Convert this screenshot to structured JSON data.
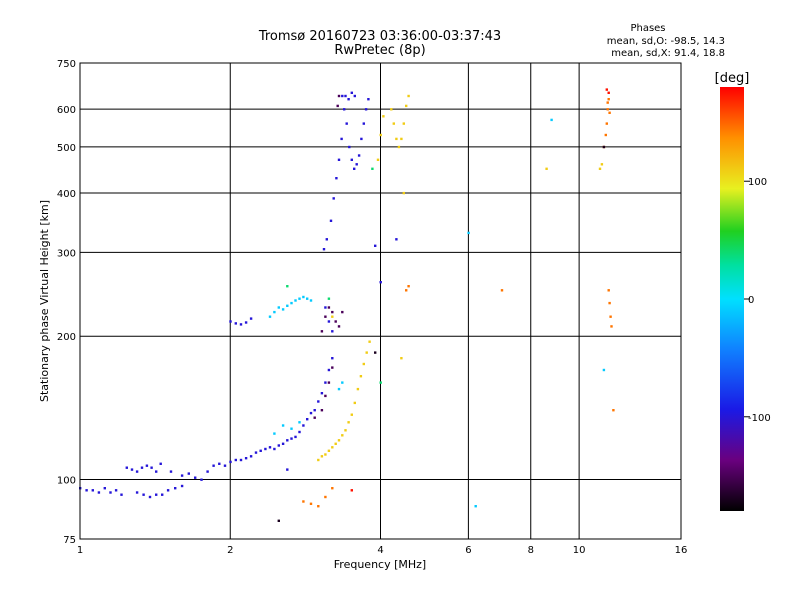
{
  "chart_data": {
    "type": "scatter",
    "title": "Tromsø 20160723 03:36:00-03:37:43",
    "subtitle": "RwPretec (8p)",
    "xlabel": "Frequency [MHz]",
    "ylabel": "Stationary phase Virtual Height [km]",
    "x_scale": "log",
    "y_scale": "log",
    "xlim": [
      1,
      16
    ],
    "ylim": [
      75,
      750
    ],
    "x_ticks": [
      1,
      2,
      4,
      6,
      8,
      10,
      16
    ],
    "y_ticks": [
      75,
      100,
      200,
      300,
      400,
      500,
      600,
      750
    ],
    "grid": true,
    "stats": {
      "header": "Phases",
      "line1": "mean, sd,O: -98.5, 14.3",
      "line2": "mean, sd,X:  91.4, 18.8"
    },
    "colorbar": {
      "label": "[deg]",
      "min": -180,
      "max": 180,
      "ticks": [
        100,
        0,
        -100
      ],
      "tick_labels": [
        "100",
        "0",
        "-100"
      ]
    },
    "series": [
      {
        "color_phase": -100,
        "points": [
          [
            1.0,
            96
          ],
          [
            1.03,
            95
          ],
          [
            1.06,
            95
          ],
          [
            1.09,
            94
          ],
          [
            1.12,
            96
          ],
          [
            1.15,
            94
          ],
          [
            1.18,
            95
          ],
          [
            1.21,
            93
          ],
          [
            1.24,
            106
          ],
          [
            1.27,
            105
          ],
          [
            1.3,
            104
          ],
          [
            1.33,
            106
          ],
          [
            1.36,
            107
          ],
          [
            1.39,
            106
          ],
          [
            1.42,
            104
          ],
          [
            1.3,
            94
          ],
          [
            1.34,
            93
          ],
          [
            1.38,
            92
          ],
          [
            1.42,
            93
          ],
          [
            1.46,
            93
          ],
          [
            1.5,
            95
          ],
          [
            1.55,
            96
          ],
          [
            1.6,
            97
          ],
          [
            1.45,
            108
          ],
          [
            1.52,
            104
          ],
          [
            1.6,
            102
          ],
          [
            1.65,
            103
          ],
          [
            1.7,
            101
          ],
          [
            1.75,
            100
          ],
          [
            1.8,
            104
          ],
          [
            1.85,
            107
          ],
          [
            1.9,
            108
          ],
          [
            1.95,
            107
          ],
          [
            2.0,
            109
          ],
          [
            2.05,
            110
          ],
          [
            2.1,
            110
          ],
          [
            2.15,
            111
          ],
          [
            2.2,
            112
          ],
          [
            2.25,
            114
          ],
          [
            2.3,
            115
          ],
          [
            2.35,
            116
          ],
          [
            2.4,
            117
          ],
          [
            2.45,
            116
          ],
          [
            2.5,
            118
          ],
          [
            2.55,
            119
          ],
          [
            2.6,
            121
          ],
          [
            2.65,
            122
          ],
          [
            2.7,
            123
          ],
          [
            2.75,
            126
          ],
          [
            2.8,
            130
          ],
          [
            2.85,
            134
          ],
          [
            2.9,
            138
          ],
          [
            2.95,
            140
          ],
          [
            3.0,
            146
          ],
          [
            3.05,
            152
          ],
          [
            3.1,
            160
          ],
          [
            3.15,
            170
          ],
          [
            3.2,
            180
          ],
          [
            2.0,
            215
          ],
          [
            2.05,
            213
          ],
          [
            2.1,
            212
          ],
          [
            2.15,
            214
          ],
          [
            2.2,
            218
          ],
          [
            3.08,
            305
          ],
          [
            3.12,
            320
          ],
          [
            3.18,
            350
          ],
          [
            3.22,
            390
          ],
          [
            3.26,
            430
          ],
          [
            3.3,
            470
          ],
          [
            3.34,
            520
          ],
          [
            3.38,
            600
          ],
          [
            3.42,
            560
          ],
          [
            3.46,
            500
          ],
          [
            3.5,
            470
          ],
          [
            3.54,
            450
          ],
          [
            3.58,
            460
          ],
          [
            3.62,
            480
          ],
          [
            3.66,
            520
          ],
          [
            3.7,
            560
          ],
          [
            3.74,
            600
          ],
          [
            3.78,
            630
          ],
          [
            3.35,
            640
          ],
          [
            3.4,
            640
          ],
          [
            3.45,
            630
          ],
          [
            3.5,
            650
          ],
          [
            3.55,
            640
          ],
          [
            3.9,
            310
          ],
          [
            4.0,
            260
          ],
          [
            4.3,
            320
          ],
          [
            3.1,
            230
          ],
          [
            3.15,
            215
          ],
          [
            3.2,
            205
          ],
          [
            2.6,
            105
          ]
        ]
      },
      {
        "color_phase": -150,
        "points": [
          [
            3.05,
            205
          ],
          [
            3.1,
            220
          ],
          [
            3.15,
            230
          ],
          [
            3.2,
            225
          ],
          [
            3.25,
            215
          ],
          [
            3.3,
            210
          ],
          [
            3.35,
            225
          ],
          [
            2.95,
            135
          ],
          [
            3.05,
            140
          ],
          [
            3.1,
            150
          ],
          [
            3.15,
            160
          ],
          [
            3.2,
            172
          ],
          [
            3.3,
            640
          ],
          [
            3.28,
            610
          ]
        ]
      },
      {
        "color_phase": -10,
        "points": [
          [
            2.4,
            220
          ],
          [
            2.45,
            225
          ],
          [
            2.5,
            230
          ],
          [
            2.55,
            228
          ],
          [
            2.6,
            232
          ],
          [
            2.65,
            235
          ],
          [
            2.7,
            238
          ],
          [
            2.75,
            240
          ],
          [
            2.8,
            242
          ],
          [
            2.85,
            240
          ],
          [
            2.9,
            238
          ],
          [
            3.3,
            155
          ],
          [
            3.35,
            160
          ],
          [
            2.45,
            125
          ],
          [
            2.55,
            130
          ],
          [
            2.65,
            128
          ],
          [
            2.75,
            132
          ],
          [
            6.0,
            330
          ],
          [
            6.2,
            88
          ],
          [
            8.8,
            570
          ],
          [
            11.2,
            170
          ]
        ]
      },
      {
        "color_phase": 110,
        "points": [
          [
            3.0,
            110
          ],
          [
            3.05,
            112
          ],
          [
            3.1,
            113
          ],
          [
            3.15,
            115
          ],
          [
            3.2,
            117
          ],
          [
            3.25,
            119
          ],
          [
            3.3,
            121
          ],
          [
            3.35,
            124
          ],
          [
            3.4,
            127
          ],
          [
            3.45,
            132
          ],
          [
            3.5,
            137
          ],
          [
            3.55,
            145
          ],
          [
            3.6,
            155
          ],
          [
            3.65,
            165
          ],
          [
            3.7,
            175
          ],
          [
            3.75,
            185
          ],
          [
            3.8,
            195
          ],
          [
            3.95,
            470
          ],
          [
            4.0,
            530
          ],
          [
            4.05,
            580
          ],
          [
            4.2,
            600
          ],
          [
            4.25,
            560
          ],
          [
            4.3,
            520
          ],
          [
            4.35,
            500
          ],
          [
            4.4,
            520
          ],
          [
            4.45,
            560
          ],
          [
            4.5,
            610
          ],
          [
            4.55,
            640
          ],
          [
            4.4,
            180
          ],
          [
            4.45,
            400
          ],
          [
            3.2,
            220
          ],
          [
            8.6,
            450
          ],
          [
            11.0,
            450
          ],
          [
            11.1,
            460
          ]
        ]
      },
      {
        "color_phase": 40,
        "points": [
          [
            2.6,
            255
          ],
          [
            3.15,
            240
          ],
          [
            3.85,
            450
          ],
          [
            4.0,
            160
          ]
        ]
      },
      {
        "color_phase": 145,
        "points": [
          [
            2.8,
            90
          ],
          [
            2.9,
            89
          ],
          [
            3.0,
            88
          ],
          [
            3.1,
            92
          ],
          [
            3.2,
            96
          ],
          [
            4.5,
            250
          ],
          [
            4.55,
            255
          ],
          [
            7.0,
            250
          ],
          [
            11.2,
            500
          ],
          [
            11.3,
            530
          ],
          [
            11.35,
            560
          ],
          [
            11.4,
            600
          ],
          [
            11.5,
            590
          ],
          [
            11.45,
            250
          ],
          [
            11.5,
            235
          ],
          [
            11.55,
            220
          ],
          [
            11.6,
            210
          ],
          [
            11.7,
            140
          ],
          [
            11.4,
            620
          ],
          [
            11.45,
            630
          ]
        ]
      },
      {
        "color_phase": 175,
        "points": [
          [
            11.35,
            660
          ],
          [
            11.45,
            650
          ],
          [
            3.5,
            95
          ]
        ]
      },
      {
        "color_phase": -170,
        "points": [
          [
            2.5,
            82
          ],
          [
            3.9,
            185
          ],
          [
            11.2,
            500
          ]
        ]
      }
    ]
  }
}
